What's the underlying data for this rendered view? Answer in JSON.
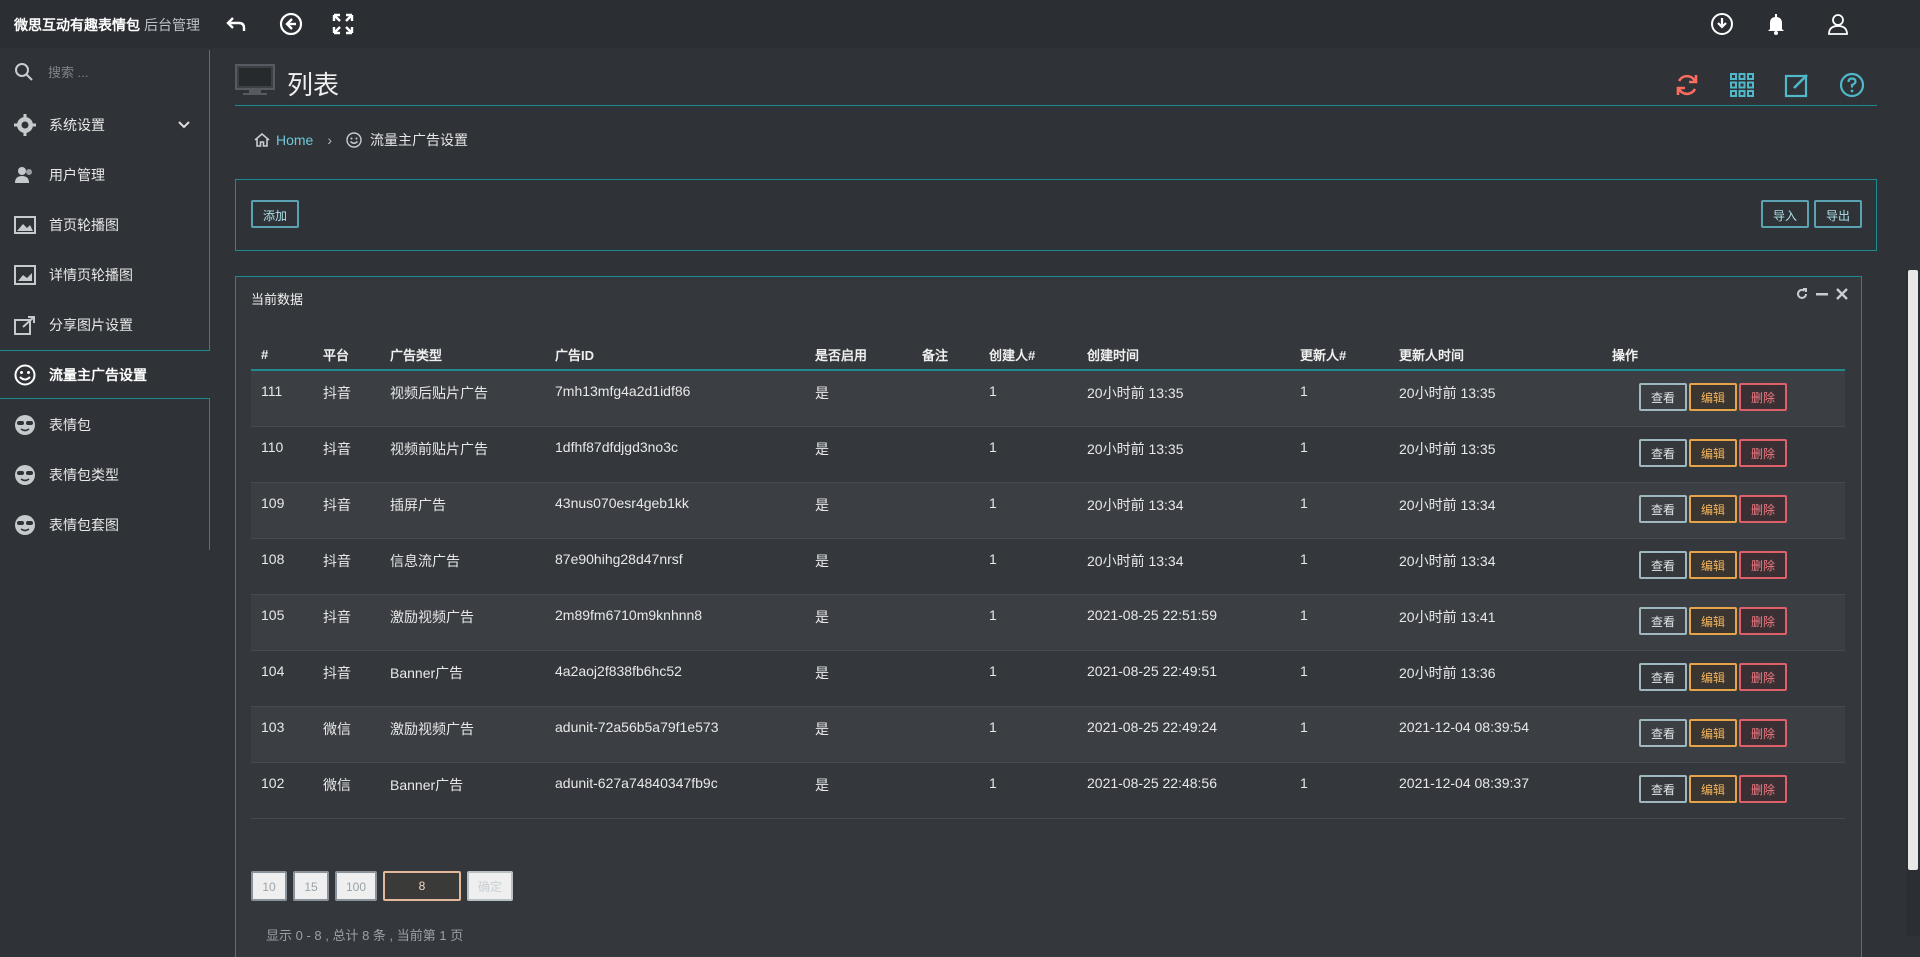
{
  "app": {
    "title": "微思互动有趣表情包",
    "subtitle": "后台管理"
  },
  "topbar": {
    "icons": [
      "undo-icon",
      "back-circle-icon",
      "fullscreen-icon",
      "download-circle-icon",
      "bell-icon",
      "user-icon"
    ]
  },
  "sidebar": {
    "search_placeholder": "搜索 ...",
    "items": [
      {
        "label": "系统设置",
        "icon": "gear-icon",
        "has_submenu": true
      },
      {
        "label": "用户管理",
        "icon": "users-icon"
      },
      {
        "label": "首页轮播图",
        "icon": "image-icon"
      },
      {
        "label": "详情页轮播图",
        "icon": "image-grid-icon"
      },
      {
        "label": "分享图片设置",
        "icon": "share-icon"
      },
      {
        "label": "流量主广告设置",
        "icon": "smile-icon",
        "active": true
      },
      {
        "label": "表情包",
        "icon": "sunglasses-face-icon"
      },
      {
        "label": "表情包类型",
        "icon": "sunglasses-face-icon"
      },
      {
        "label": "表情包套图",
        "icon": "sunglasses-face-icon"
      }
    ]
  },
  "page": {
    "title": "列表",
    "header_icons": [
      "refresh-icon",
      "grid-icon",
      "edit-icon",
      "help-icon"
    ],
    "breadcrumb": {
      "home": "Home",
      "current": "流量主广告设置"
    }
  },
  "toolbar": {
    "add": "添加",
    "import": "导入",
    "export": "导出"
  },
  "panel": {
    "title": "当前数据",
    "columns": [
      "#",
      "平台",
      "广告类型",
      "广告ID",
      "是否启用",
      "备注",
      "创建人#",
      "创建时间",
      "更新人#",
      "更新人时间",
      "操作"
    ],
    "rows": [
      {
        "id": "111",
        "platform": "抖音",
        "type": "视频后贴片广告",
        "ad_id": "7mh13mfg4a2d1idf86",
        "enabled": "是",
        "note": "",
        "creator": "1",
        "created": "20小时前 13:35",
        "updater": "1",
        "updated": "20小时前 13:35"
      },
      {
        "id": "110",
        "platform": "抖音",
        "type": "视频前贴片广告",
        "ad_id": "1dfhf87dfdjgd3no3c",
        "enabled": "是",
        "note": "",
        "creator": "1",
        "created": "20小时前 13:35",
        "updater": "1",
        "updated": "20小时前 13:35"
      },
      {
        "id": "109",
        "platform": "抖音",
        "type": "插屏广告",
        "ad_id": "43nus070esr4geb1kk",
        "enabled": "是",
        "note": "",
        "creator": "1",
        "created": "20小时前 13:34",
        "updater": "1",
        "updated": "20小时前 13:34"
      },
      {
        "id": "108",
        "platform": "抖音",
        "type": "信息流广告",
        "ad_id": "87e90hihg28d47nrsf",
        "enabled": "是",
        "note": "",
        "creator": "1",
        "created": "20小时前 13:34",
        "updater": "1",
        "updated": "20小时前 13:34"
      },
      {
        "id": "105",
        "platform": "抖音",
        "type": "激励视频广告",
        "ad_id": "2m89fm6710m9knhnn8",
        "enabled": "是",
        "note": "",
        "creator": "1",
        "created": "2021-08-25 22:51:59",
        "updater": "1",
        "updated": "20小时前 13:41"
      },
      {
        "id": "104",
        "platform": "抖音",
        "type": "Banner广告",
        "ad_id": "4a2aoj2f838fb6hc52",
        "enabled": "是",
        "note": "",
        "creator": "1",
        "created": "2021-08-25 22:49:51",
        "updater": "1",
        "updated": "20小时前 13:36"
      },
      {
        "id": "103",
        "platform": "微信",
        "type": "激励视频广告",
        "ad_id": "adunit-72a56b5a79f1e573",
        "enabled": "是",
        "note": "",
        "creator": "1",
        "created": "2021-08-25 22:49:24",
        "updater": "1",
        "updated": "2021-12-04 08:39:54"
      },
      {
        "id": "102",
        "platform": "微信",
        "type": "Banner广告",
        "ad_id": "adunit-627a74840347fb9c",
        "enabled": "是",
        "note": "",
        "creator": "1",
        "created": "2021-08-25 22:48:56",
        "updater": "1",
        "updated": "2021-12-04 08:39:37"
      }
    ],
    "row_actions": {
      "view": "查看",
      "edit": "编辑",
      "delete": "删除"
    }
  },
  "pagination": {
    "page_sizes": [
      "10",
      "15",
      "100"
    ],
    "page_input_value": "8",
    "confirm": "确定",
    "footer": "显示 0 - 8 , 总计 8 条 , 当前第 1 页"
  },
  "colors": {
    "accent": "#1e8a8f",
    "edit": "#e6a44a",
    "delete": "#e0606a",
    "refresh": "#ff6b5e"
  }
}
